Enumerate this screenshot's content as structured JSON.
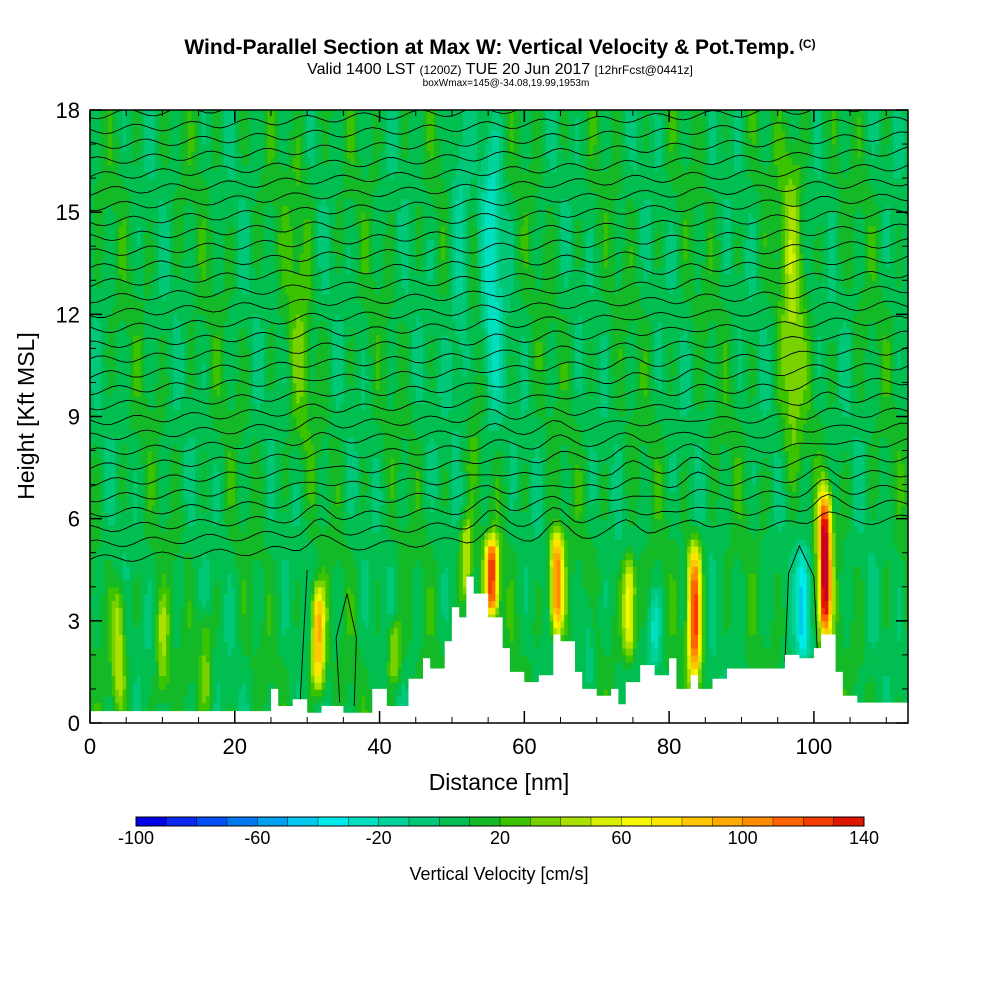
{
  "header": {
    "title": "Wind-Parallel Section at Max W: Vertical Velocity & Pot.Temp.",
    "copyright": "(C)",
    "subtitle_main": "Valid 1400 LST",
    "subtitle_utc": "(1200Z)",
    "subtitle_date": "TUE 20 Jun 2017",
    "subtitle_fcst": "[12hrFcst@0441z]",
    "box_info": "boxWmax=145@-34.08,19.99,1953m"
  },
  "chart_data": {
    "type": "heatmap",
    "title": "Wind-Parallel Section at Max W: Vertical Velocity & Pot.Temp.",
    "xlabel": "Distance [nm]",
    "ylabel": "Height [Kft MSL]",
    "xlim": [
      0,
      113
    ],
    "ylim": [
      0,
      18
    ],
    "xticks": [
      0,
      20,
      40,
      60,
      80,
      100
    ],
    "yticks": [
      0,
      3,
      6,
      9,
      12,
      15,
      18
    ],
    "colorbar": {
      "title": "Vertical Velocity [cm/s]",
      "ticks": [
        -100,
        -60,
        -20,
        20,
        60,
        100,
        140
      ],
      "tick_labels": [
        "-100",
        "-60",
        "-20",
        "20",
        "60",
        "100",
        "140"
      ],
      "range": [
        -100,
        140
      ],
      "step": 10,
      "colors": [
        "#0000e6",
        "#0a28f0",
        "#0050f5",
        "#0078f0",
        "#00a0f0",
        "#00c8f0",
        "#00ebeb",
        "#00e0c0",
        "#00d39a",
        "#00c878",
        "#00bf50",
        "#14b928",
        "#3cc300",
        "#78d200",
        "#aae100",
        "#d7f000",
        "#f5fa00",
        "#ffe600",
        "#ffc800",
        "#ffaa00",
        "#ff8c00",
        "#ff6400",
        "#f53c00",
        "#e11400",
        "#c80023",
        "#9b0050"
      ]
    },
    "background_w": 8,
    "updrafts": [
      {
        "x": 4,
        "z0": 0.4,
        "z1": 4.3,
        "w": 42
      },
      {
        "x": 10,
        "z0": 0.4,
        "z1": 3.8,
        "w": 30
      },
      {
        "x": 16,
        "z0": 0.4,
        "z1": 3.5,
        "w": 26
      },
      {
        "x": 31.5,
        "z0": 0.8,
        "z1": 4.2,
        "w": 88
      },
      {
        "x": 42,
        "z0": 1.0,
        "z1": 3.2,
        "w": 38
      },
      {
        "x": 52,
        "z0": 3.3,
        "z1": 6.2,
        "w": 45
      },
      {
        "x": 55.5,
        "z0": 3.0,
        "z1": 5.6,
        "w": 120
      },
      {
        "x": 64.5,
        "z0": 2.4,
        "z1": 5.8,
        "w": 105
      },
      {
        "x": 74.5,
        "z0": 1.8,
        "z1": 5.0,
        "w": 70
      },
      {
        "x": 83.5,
        "z0": 1.0,
        "z1": 5.5,
        "w": 115
      },
      {
        "x": 101.5,
        "z0": 2.2,
        "z1": 7.0,
        "w": 145
      },
      {
        "x": 97,
        "z0": 7.0,
        "z1": 18,
        "w": 30
      },
      {
        "x": 52.5,
        "z0": 7.0,
        "z1": 18,
        "w": 18
      },
      {
        "x": 29,
        "z0": 7.0,
        "z1": 18,
        "w": 15
      }
    ],
    "downdrafts": [
      {
        "x": 98.5,
        "z0": 1.6,
        "z1": 5.3,
        "w": -52
      },
      {
        "x": 51.5,
        "z0": 8.0,
        "z1": 18,
        "w": -32
      },
      {
        "x": 55.5,
        "z0": 8.0,
        "z1": 18,
        "w": -30
      },
      {
        "x": 78,
        "z0": 1.6,
        "z1": 4.0,
        "w": -28
      },
      {
        "x": 69,
        "z0": 1.0,
        "z1": 4.0,
        "w": -20
      }
    ],
    "terrain": {
      "x": [
        0,
        23,
        25,
        26,
        28,
        30,
        32,
        35,
        37,
        39,
        41,
        44,
        46,
        47,
        49,
        50,
        51,
        52,
        53,
        55,
        57,
        58,
        60,
        62,
        64,
        65,
        67,
        68,
        70,
        72,
        73,
        74,
        76,
        78,
        80,
        81,
        83,
        84,
        86,
        88,
        90,
        92,
        94,
        96,
        98,
        100,
        101,
        103,
        104,
        106,
        108,
        113
      ],
      "z": [
        0.35,
        0.35,
        1.0,
        0.5,
        0.7,
        0.3,
        0.5,
        0.3,
        0.3,
        1.0,
        0.5,
        1.3,
        1.9,
        1.6,
        2.4,
        3.4,
        3.1,
        4.3,
        3.8,
        3.1,
        2.2,
        1.5,
        1.2,
        1.4,
        2.6,
        2.4,
        1.5,
        1.0,
        0.8,
        1.0,
        0.55,
        1.2,
        1.7,
        1.4,
        1.9,
        1.0,
        1.4,
        1.0,
        1.3,
        1.6,
        1.6,
        1.6,
        1.6,
        2.0,
        1.9,
        2.2,
        2.6,
        1.5,
        0.8,
        0.6,
        0.6,
        0.6
      ]
    },
    "theta_contours": {
      "count": 30,
      "boundary_layer_top_left": 4.8,
      "boundary_layer_top_right": 6.0,
      "spacing_kft": 0.45
    }
  }
}
